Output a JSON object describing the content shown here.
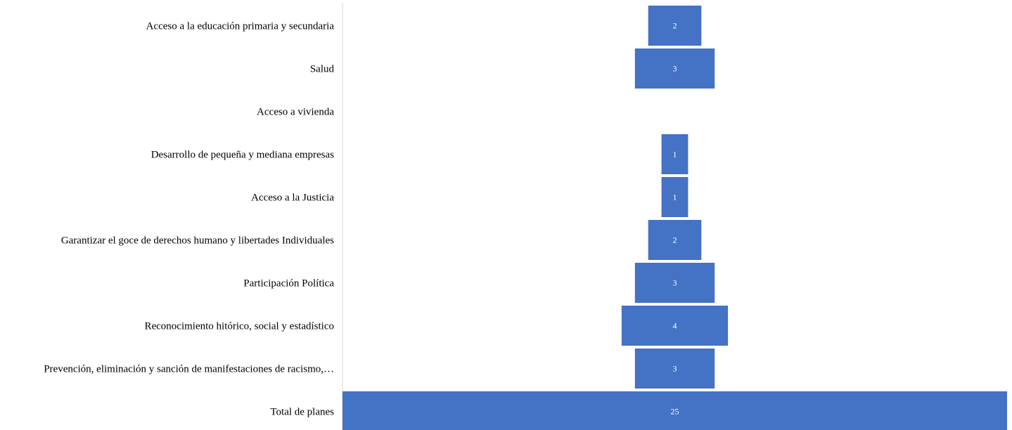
{
  "chart_data": {
    "type": "bar",
    "orientation": "horizontal",
    "style": "funnel-centered",
    "title": "",
    "xlabel": "",
    "ylabel": "",
    "categories": [
      "Acceso a la educación primaria y secundaria",
      "Salud",
      "Acceso a vivienda",
      "Desarrollo de pequeña y mediana empresas",
      "Acceso a la Justicia",
      "Garantizar el goce de derechos humano y libertades Individuales",
      "Participación Política",
      "Reconocimiento hitórico, social y estadístico",
      "Prevención, eliminación y sanción de manifestaciones de racismo,…",
      "Total de planes"
    ],
    "values": [
      2,
      3,
      0,
      1,
      1,
      2,
      3,
      4,
      3,
      25
    ],
    "value_labels": [
      "2",
      "3",
      "",
      "1",
      "1",
      "2",
      "3",
      "4",
      "3",
      "25"
    ],
    "xlim": [
      0,
      25
    ],
    "grid": false,
    "legend": "none",
    "bar_color": "#4472C4",
    "axis_color": "#d9d9d9"
  }
}
